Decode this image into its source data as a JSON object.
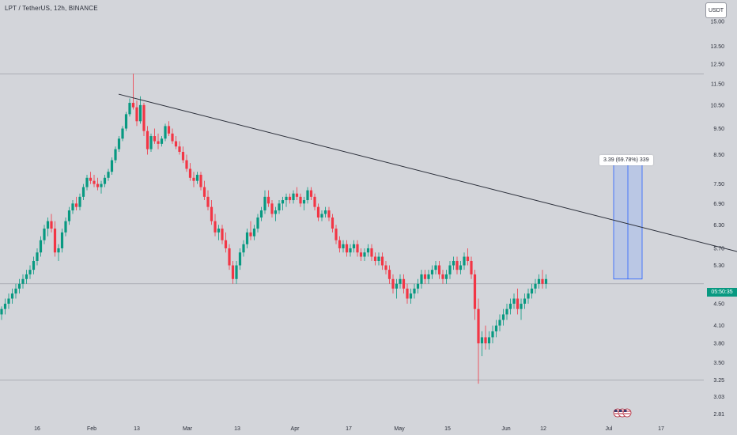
{
  "header": {
    "title": "LPT / TetherUS, 12h, BINANCE"
  },
  "currency_badge": "USDT",
  "last_price_tag": "05:50:35",
  "measure_tool": {
    "label": "3.39 (69.78%) 339"
  },
  "event_icons": [
    "us-flag-icon",
    "us-flag-icon",
    "us-flag-icon"
  ],
  "colors": {
    "background": "#d3d5da",
    "up_candle": "#089981",
    "down_candle": "#f23645",
    "trendline": "#2a2e39",
    "measure_fill": "#b4c3e6",
    "measure_line": "#2962ff",
    "price_tag": "#089981"
  },
  "chart_data": {
    "type": "candlestick",
    "symbol": "LPT / TetherUS",
    "interval": "12h",
    "exchange": "BINANCE",
    "y_axis": {
      "scale": "log",
      "ticks": [
        2.81,
        3.03,
        3.25,
        3.5,
        3.8,
        4.1,
        4.5,
        5.3,
        5.7,
        6.3,
        6.9,
        7.5,
        8.5,
        9.5,
        10.5,
        11.5,
        12.5,
        13.5,
        15.0
      ],
      "tick_labels": [
        "2.81",
        "3.03",
        "3.25",
        "3.50",
        "3.80",
        "4.10",
        "4.50",
        "5.30",
        "5.70",
        "6.30",
        "6.90",
        "7.50",
        "8.50",
        "9.50",
        "10.50",
        "11.50",
        "12.50",
        "13.50",
        "15.00"
      ],
      "range": [
        2.75,
        16.0
      ]
    },
    "x_axis": {
      "tick_labels": [
        "16",
        "Feb",
        "13",
        "Mar",
        "13",
        "Apr",
        "17",
        "May",
        "15",
        "Jun",
        "12",
        "Jul",
        "17"
      ]
    },
    "horizontal_lines": [
      12.0,
      4.9,
      3.25
    ],
    "trendline": {
      "from": {
        "bar": 32,
        "price": 11.0
      },
      "to": {
        "bar": 248,
        "price": 4.8
      }
    },
    "measure": {
      "from_price": 5.0,
      "to_price": 8.39,
      "change": 3.39,
      "change_pct": 69.78,
      "bars": 339
    },
    "candles_ohlc": [
      [
        4.3,
        4.45,
        4.2,
        4.4
      ],
      [
        4.4,
        4.6,
        4.3,
        4.5
      ],
      [
        4.5,
        4.7,
        4.4,
        4.6
      ],
      [
        4.6,
        4.8,
        4.5,
        4.7
      ],
      [
        4.7,
        4.9,
        4.6,
        4.8
      ],
      [
        4.8,
        5.0,
        4.7,
        4.9
      ],
      [
        4.9,
        5.1,
        4.8,
        5.0
      ],
      [
        5.0,
        5.2,
        4.9,
        5.1
      ],
      [
        5.1,
        5.3,
        5.0,
        5.2
      ],
      [
        5.2,
        5.5,
        5.1,
        5.4
      ],
      [
        5.4,
        5.7,
        5.3,
        5.6
      ],
      [
        5.6,
        6.0,
        5.5,
        5.9
      ],
      [
        5.9,
        6.3,
        5.8,
        6.2
      ],
      [
        6.2,
        6.5,
        6.0,
        6.4
      ],
      [
        6.4,
        6.6,
        6.1,
        6.2
      ],
      [
        6.2,
        6.4,
        5.5,
        5.6
      ],
      [
        5.6,
        5.8,
        5.4,
        5.7
      ],
      [
        5.7,
        6.2,
        5.6,
        6.1
      ],
      [
        6.1,
        6.5,
        6.0,
        6.4
      ],
      [
        6.4,
        6.8,
        6.3,
        6.7
      ],
      [
        6.7,
        7.0,
        6.6,
        6.9
      ],
      [
        6.9,
        7.1,
        6.7,
        6.8
      ],
      [
        6.8,
        7.2,
        6.7,
        7.1
      ],
      [
        7.1,
        7.5,
        7.0,
        7.4
      ],
      [
        7.4,
        7.8,
        7.3,
        7.7
      ],
      [
        7.7,
        7.9,
        7.5,
        7.6
      ],
      [
        7.6,
        7.8,
        7.4,
        7.5
      ],
      [
        7.5,
        7.7,
        7.3,
        7.4
      ],
      [
        7.4,
        7.6,
        7.2,
        7.5
      ],
      [
        7.5,
        7.8,
        7.4,
        7.7
      ],
      [
        7.7,
        8.0,
        7.6,
        7.9
      ],
      [
        7.9,
        8.4,
        7.8,
        8.3
      ],
      [
        8.3,
        8.8,
        8.2,
        8.7
      ],
      [
        8.7,
        9.2,
        8.6,
        9.1
      ],
      [
        9.1,
        9.6,
        9.0,
        9.5
      ],
      [
        9.5,
        10.2,
        9.4,
        10.1
      ],
      [
        10.1,
        10.8,
        10.0,
        10.6
      ],
      [
        10.6,
        12.0,
        10.3,
        10.4
      ],
      [
        10.4,
        10.7,
        9.6,
        9.8
      ],
      [
        9.8,
        10.9,
        9.7,
        10.5
      ],
      [
        10.5,
        10.6,
        9.2,
        9.4
      ],
      [
        9.4,
        9.6,
        8.5,
        8.7
      ],
      [
        8.7,
        9.3,
        8.6,
        9.2
      ],
      [
        9.2,
        9.5,
        8.9,
        9.0
      ],
      [
        9.0,
        9.3,
        8.7,
        8.9
      ],
      [
        8.9,
        9.2,
        8.8,
        9.1
      ],
      [
        9.1,
        9.7,
        9.0,
        9.6
      ],
      [
        9.6,
        9.8,
        9.2,
        9.3
      ],
      [
        9.3,
        9.5,
        8.9,
        9.0
      ],
      [
        9.0,
        9.2,
        8.7,
        8.8
      ],
      [
        8.8,
        9.0,
        8.5,
        8.6
      ],
      [
        8.6,
        8.8,
        8.2,
        8.3
      ],
      [
        8.3,
        8.5,
        7.9,
        8.0
      ],
      [
        8.0,
        8.2,
        7.6,
        7.7
      ],
      [
        7.7,
        7.9,
        7.4,
        7.6
      ],
      [
        7.6,
        7.9,
        7.5,
        7.8
      ],
      [
        7.8,
        7.9,
        7.3,
        7.4
      ],
      [
        7.4,
        7.6,
        7.0,
        7.1
      ],
      [
        7.1,
        7.3,
        6.7,
        6.8
      ],
      [
        6.8,
        7.0,
        6.3,
        6.4
      ],
      [
        6.4,
        6.6,
        6.0,
        6.1
      ],
      [
        6.1,
        6.3,
        5.9,
        6.2
      ],
      [
        6.2,
        6.3,
        5.8,
        5.9
      ],
      [
        5.9,
        6.1,
        5.6,
        5.7
      ],
      [
        5.7,
        5.8,
        5.2,
        5.3
      ],
      [
        5.3,
        5.4,
        4.9,
        5.0
      ],
      [
        5.0,
        5.4,
        4.9,
        5.3
      ],
      [
        5.3,
        5.7,
        5.2,
        5.6
      ],
      [
        5.6,
        5.9,
        5.5,
        5.8
      ],
      [
        5.8,
        6.2,
        5.7,
        6.1
      ],
      [
        6.1,
        6.4,
        5.9,
        6.0
      ],
      [
        6.0,
        6.3,
        5.9,
        6.2
      ],
      [
        6.2,
        6.6,
        6.1,
        6.5
      ],
      [
        6.5,
        6.8,
        6.4,
        6.7
      ],
      [
        6.7,
        7.3,
        6.6,
        7.1
      ],
      [
        7.1,
        7.3,
        6.8,
        6.9
      ],
      [
        6.9,
        7.0,
        6.5,
        6.6
      ],
      [
        6.6,
        6.8,
        6.4,
        6.7
      ],
      [
        6.7,
        7.0,
        6.6,
        6.9
      ],
      [
        6.9,
        7.1,
        6.7,
        7.0
      ],
      [
        7.0,
        7.2,
        6.8,
        7.1
      ],
      [
        7.1,
        7.2,
        6.9,
        7.0
      ],
      [
        7.0,
        7.3,
        6.9,
        7.2
      ],
      [
        7.2,
        7.4,
        7.0,
        7.1
      ],
      [
        7.1,
        7.2,
        6.8,
        6.9
      ],
      [
        6.9,
        7.1,
        6.7,
        7.0
      ],
      [
        7.0,
        7.4,
        6.9,
        7.3
      ],
      [
        7.3,
        7.4,
        7.0,
        7.1
      ],
      [
        7.1,
        7.2,
        6.7,
        6.8
      ],
      [
        6.8,
        6.9,
        6.4,
        6.5
      ],
      [
        6.5,
        6.7,
        6.4,
        6.6
      ],
      [
        6.6,
        6.8,
        6.5,
        6.7
      ],
      [
        6.7,
        6.8,
        6.4,
        6.5
      ],
      [
        6.5,
        6.6,
        6.1,
        6.2
      ],
      [
        6.2,
        6.3,
        5.8,
        5.9
      ],
      [
        5.9,
        6.0,
        5.6,
        5.7
      ],
      [
        5.7,
        5.9,
        5.6,
        5.8
      ],
      [
        5.8,
        5.9,
        5.5,
        5.6
      ],
      [
        5.6,
        5.8,
        5.5,
        5.7
      ],
      [
        5.7,
        5.9,
        5.6,
        5.8
      ],
      [
        5.8,
        5.9,
        5.5,
        5.6
      ],
      [
        5.6,
        5.7,
        5.4,
        5.5
      ],
      [
        5.5,
        5.7,
        5.4,
        5.6
      ],
      [
        5.6,
        5.8,
        5.5,
        5.7
      ],
      [
        5.7,
        5.8,
        5.4,
        5.5
      ],
      [
        5.5,
        5.6,
        5.3,
        5.4
      ],
      [
        5.4,
        5.6,
        5.3,
        5.5
      ],
      [
        5.5,
        5.6,
        5.2,
        5.3
      ],
      [
        5.3,
        5.4,
        5.1,
        5.2
      ],
      [
        5.2,
        5.3,
        4.9,
        5.0
      ],
      [
        5.0,
        5.1,
        4.7,
        4.8
      ],
      [
        4.8,
        5.0,
        4.6,
        4.9
      ],
      [
        4.9,
        5.1,
        4.8,
        5.0
      ],
      [
        5.0,
        5.1,
        4.7,
        4.8
      ],
      [
        4.8,
        4.9,
        4.5,
        4.6
      ],
      [
        4.6,
        4.8,
        4.5,
        4.7
      ],
      [
        4.7,
        4.9,
        4.6,
        4.8
      ],
      [
        4.8,
        5.0,
        4.7,
        4.9
      ],
      [
        4.9,
        5.2,
        4.8,
        5.1
      ],
      [
        5.1,
        5.2,
        4.9,
        5.0
      ],
      [
        5.0,
        5.2,
        4.9,
        5.1
      ],
      [
        5.1,
        5.3,
        5.0,
        5.2
      ],
      [
        5.2,
        5.4,
        5.1,
        5.3
      ],
      [
        5.3,
        5.4,
        5.0,
        5.1
      ],
      [
        5.1,
        5.2,
        4.9,
        5.0
      ],
      [
        5.0,
        5.2,
        4.9,
        5.1
      ],
      [
        5.1,
        5.4,
        5.0,
        5.3
      ],
      [
        5.3,
        5.5,
        5.2,
        5.4
      ],
      [
        5.4,
        5.5,
        5.1,
        5.2
      ],
      [
        5.2,
        5.4,
        5.1,
        5.3
      ],
      [
        5.3,
        5.6,
        5.2,
        5.5
      ],
      [
        5.5,
        5.7,
        5.3,
        5.4
      ],
      [
        5.4,
        5.5,
        5.0,
        5.1
      ],
      [
        5.1,
        5.2,
        4.2,
        4.4
      ],
      [
        4.4,
        4.6,
        3.2,
        3.8
      ],
      [
        3.8,
        4.0,
        3.6,
        3.9
      ],
      [
        3.9,
        4.1,
        3.7,
        3.8
      ],
      [
        3.8,
        4.0,
        3.7,
        3.9
      ],
      [
        3.9,
        4.1,
        3.8,
        4.0
      ],
      [
        4.0,
        4.2,
        3.9,
        4.1
      ],
      [
        4.1,
        4.3,
        4.0,
        4.2
      ],
      [
        4.2,
        4.4,
        4.1,
        4.3
      ],
      [
        4.3,
        4.5,
        4.2,
        4.4
      ],
      [
        4.4,
        4.6,
        4.3,
        4.5
      ],
      [
        4.5,
        4.7,
        4.4,
        4.6
      ],
      [
        4.6,
        4.8,
        4.3,
        4.4
      ],
      [
        4.4,
        4.6,
        4.2,
        4.5
      ],
      [
        4.5,
        4.7,
        4.4,
        4.6
      ],
      [
        4.6,
        4.8,
        4.5,
        4.7
      ],
      [
        4.7,
        4.9,
        4.6,
        4.8
      ],
      [
        4.8,
        5.0,
        4.7,
        4.9
      ],
      [
        4.9,
        5.1,
        4.8,
        5.0
      ],
      [
        5.0,
        5.2,
        4.8,
        4.9
      ],
      [
        4.9,
        5.1,
        4.8,
        5.0
      ]
    ]
  }
}
